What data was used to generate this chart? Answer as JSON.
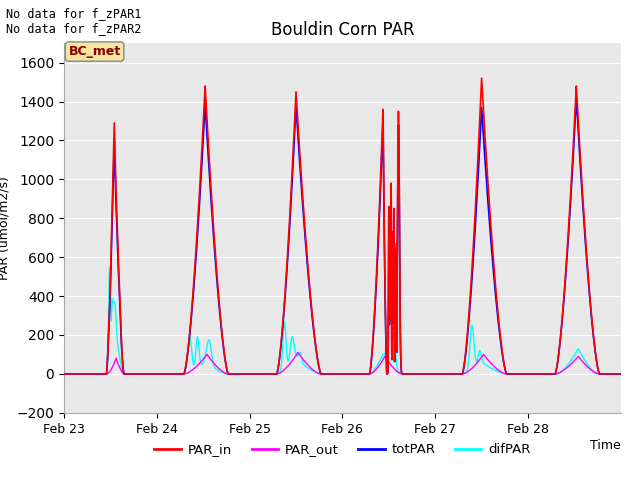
{
  "title": "Bouldin Corn PAR",
  "ylabel": "PAR (umol/m2/s)",
  "xlabel": "Time",
  "ylim": [
    -200,
    1700
  ],
  "yticks": [
    -200,
    0,
    200,
    400,
    600,
    800,
    1000,
    1200,
    1400,
    1600
  ],
  "no_data_text": [
    "No data for f_zPAR1",
    "No data for f_zPAR2"
  ],
  "legend_label": "BC_met",
  "legend_entries": [
    "PAR_in",
    "PAR_out",
    "totPAR",
    "difPAR"
  ],
  "legend_colors": [
    "red",
    "magenta",
    "blue",
    "cyan"
  ],
  "bg_color": "#e8e8e8",
  "day_labels": [
    "Feb 23",
    "Feb 24",
    "Feb 25",
    "Feb 26",
    "Feb 27",
    "Feb 28"
  ],
  "total_hours": 144
}
